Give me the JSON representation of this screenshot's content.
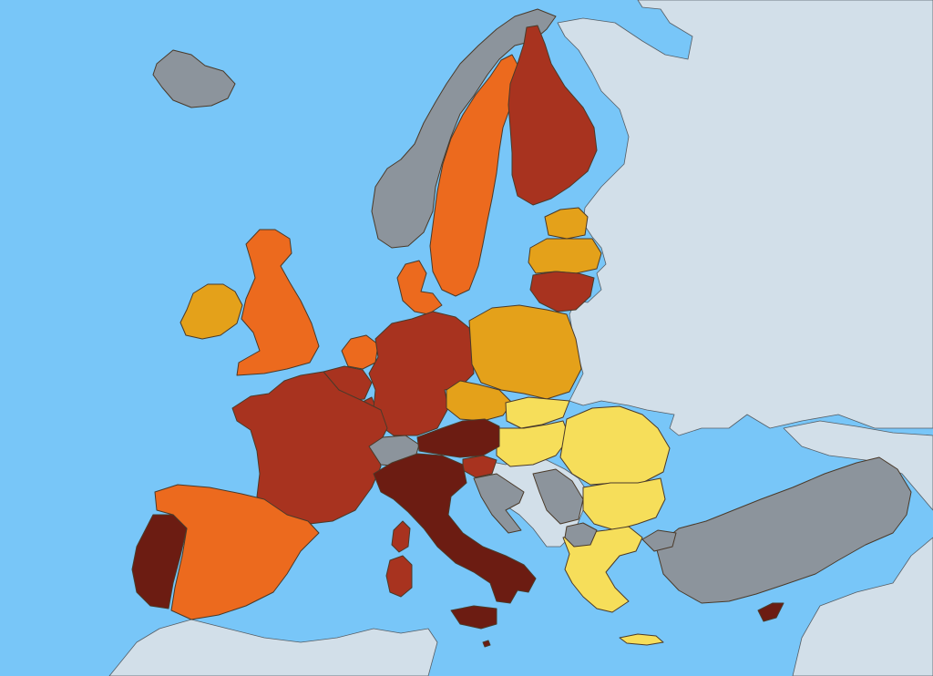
{
  "map": {
    "projection": "Europe",
    "colors": {
      "sea": "#78c6f8",
      "non_eu_land": "#d2dfe9",
      "no_data": "#8c949c",
      "class_1": "#f6de5a",
      "class_2": "#e4a11a",
      "class_3": "#ec6a1e",
      "class_4": "#a8331f",
      "class_5": "#6c1c12"
    },
    "countries": [
      {
        "id": "iceland",
        "fill": "no_data"
      },
      {
        "id": "norway",
        "fill": "no_data"
      },
      {
        "id": "sweden",
        "fill": "class_3"
      },
      {
        "id": "finland",
        "fill": "class_4"
      },
      {
        "id": "estonia",
        "fill": "class_2"
      },
      {
        "id": "latvia",
        "fill": "class_2"
      },
      {
        "id": "lithuania",
        "fill": "class_4"
      },
      {
        "id": "ireland",
        "fill": "class_2"
      },
      {
        "id": "united-kingdom",
        "fill": "class_3"
      },
      {
        "id": "denmark",
        "fill": "class_3"
      },
      {
        "id": "netherlands",
        "fill": "class_3"
      },
      {
        "id": "belgium",
        "fill": "class_4"
      },
      {
        "id": "luxembourg",
        "fill": "class_4"
      },
      {
        "id": "germany",
        "fill": "class_4"
      },
      {
        "id": "poland",
        "fill": "class_2"
      },
      {
        "id": "czechia",
        "fill": "class_2"
      },
      {
        "id": "slovakia",
        "fill": "class_1"
      },
      {
        "id": "hungary",
        "fill": "class_1"
      },
      {
        "id": "romania",
        "fill": "class_1"
      },
      {
        "id": "bulgaria",
        "fill": "class_1"
      },
      {
        "id": "greece",
        "fill": "class_1"
      },
      {
        "id": "france",
        "fill": "class_4"
      },
      {
        "id": "spain",
        "fill": "class_3"
      },
      {
        "id": "portugal",
        "fill": "class_5"
      },
      {
        "id": "switzerland",
        "fill": "no_data"
      },
      {
        "id": "austria",
        "fill": "class_5"
      },
      {
        "id": "slovenia",
        "fill": "class_4"
      },
      {
        "id": "italy",
        "fill": "class_5"
      },
      {
        "id": "corsica",
        "fill": "class_4"
      },
      {
        "id": "sardinia",
        "fill": "class_4"
      },
      {
        "id": "sicily",
        "fill": "class_5"
      },
      {
        "id": "malta",
        "fill": "class_5"
      },
      {
        "id": "cyprus",
        "fill": "class_5"
      },
      {
        "id": "croatia",
        "fill": "no_data"
      },
      {
        "id": "serbia",
        "fill": "no_data"
      },
      {
        "id": "north-macedonia",
        "fill": "no_data"
      },
      {
        "id": "turkey",
        "fill": "no_data"
      }
    ]
  }
}
